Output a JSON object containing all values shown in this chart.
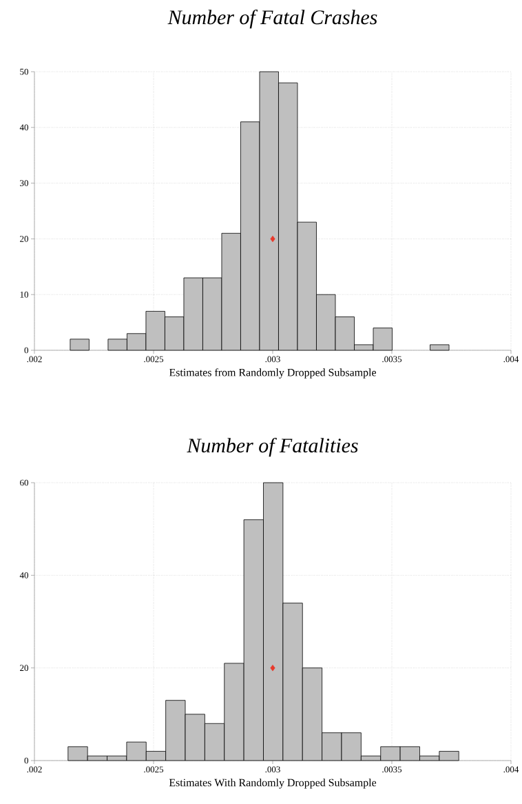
{
  "chart_data": [
    {
      "type": "histogram",
      "title": "Number of Fatal Crashes",
      "xlabel": "Estimates from Randomly Dropped Subsample",
      "bins": [
        0.00215,
        0.0022295,
        0.002309,
        0.0023885,
        0.002468,
        0.0025475,
        0.002627,
        0.0027065,
        0.002786,
        0.0028655,
        0.002945,
        0.0030245,
        0.003104,
        0.0031835,
        0.003263,
        0.0033425,
        0.003422,
        0.0035015,
        0.003581,
        0.0036605,
        0.00374
      ],
      "values": [
        2,
        0,
        2,
        3,
        7,
        6,
        13,
        13,
        21,
        41,
        50,
        48,
        23,
        10,
        6,
        1,
        4,
        0,
        0,
        1
      ],
      "color": "#bfbfbf",
      "series": [
        {
          "type": "scatter",
          "x": [
            0.003
          ],
          "values": [
            20
          ],
          "color": "#e8392b",
          "marker": "diamond"
        }
      ],
      "xlim": [
        0.002,
        0.004
      ],
      "ylim": [
        0,
        50
      ],
      "xticks": [
        {
          "value": 0.002,
          "label": ".002"
        },
        {
          "value": 0.0025,
          "label": ".0025"
        },
        {
          "value": 0.003,
          "label": ".003"
        },
        {
          "value": 0.0035,
          "label": ".0035"
        },
        {
          "value": 0.004,
          "label": ".004"
        }
      ],
      "yticks": [
        0,
        10,
        20,
        30,
        40,
        50
      ],
      "grid": true
    },
    {
      "type": "histogram",
      "title": "Number of Fatalities",
      "xlabel": "Estimates With Randomly Dropped Subsample",
      "bins": [
        0.002141,
        0.002223,
        0.002305,
        0.002387,
        0.002469,
        0.002551,
        0.002633,
        0.002715,
        0.002797,
        0.002879,
        0.002961,
        0.003043,
        0.003125,
        0.003207,
        0.003289,
        0.003371,
        0.003453,
        0.003535,
        0.003617,
        0.003699,
        0.003781
      ],
      "values": [
        3,
        1,
        1,
        4,
        2,
        13,
        10,
        8,
        21,
        52,
        60,
        34,
        20,
        6,
        6,
        1,
        3,
        3,
        1,
        2
      ],
      "color": "#bfbfbf",
      "series": [
        {
          "type": "scatter",
          "x": [
            0.003
          ],
          "values": [
            20
          ],
          "color": "#e8392b",
          "marker": "diamond"
        }
      ],
      "xlim": [
        0.002,
        0.004
      ],
      "ylim": [
        0,
        60
      ],
      "xticks": [
        {
          "value": 0.002,
          "label": ".002"
        },
        {
          "value": 0.0025,
          "label": ".0025"
        },
        {
          "value": 0.003,
          "label": ".003"
        },
        {
          "value": 0.0035,
          "label": ".0035"
        },
        {
          "value": 0.004,
          "label": ".004"
        }
      ],
      "yticks": [
        0,
        20,
        40,
        60
      ],
      "grid": true
    }
  ]
}
